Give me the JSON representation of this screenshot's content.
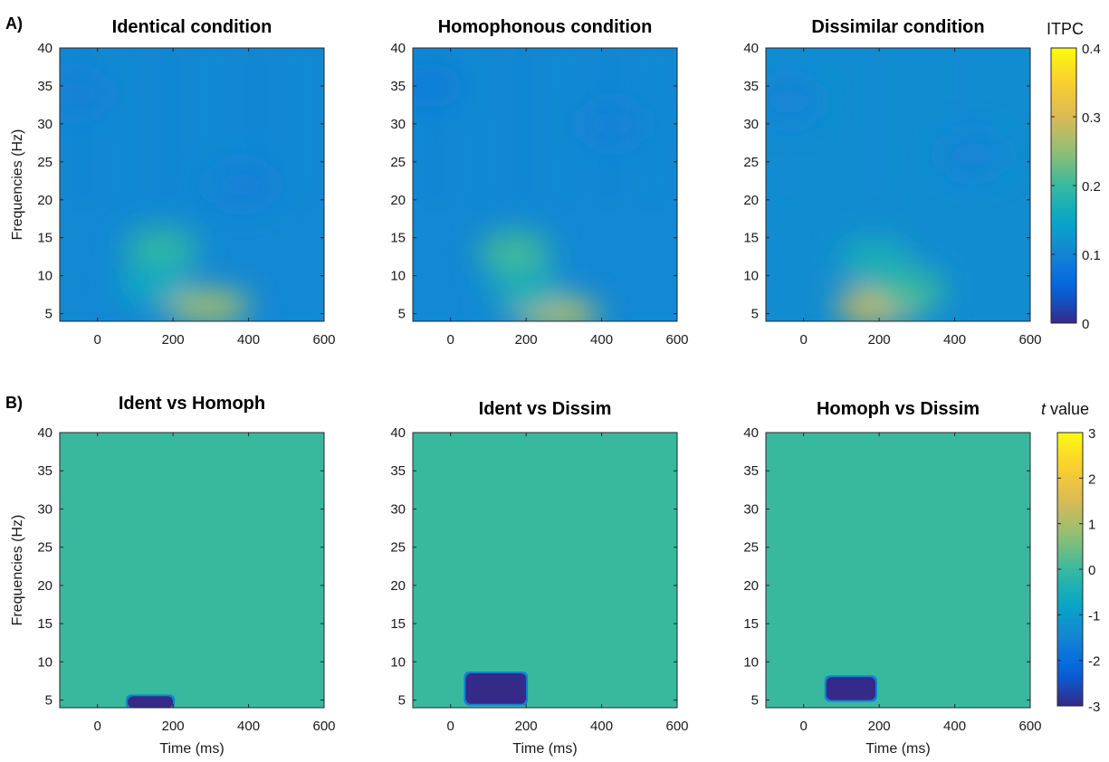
{
  "panel_labels": [
    "A)",
    "B)"
  ],
  "colorbars": {
    "itpc": {
      "label": "ITPC",
      "range": [
        0,
        0.4
      ],
      "ticks": [
        "0",
        "0.1",
        "0.2",
        "0.3",
        "0.4"
      ],
      "colormap": "parula"
    },
    "t": {
      "label_italic": "t",
      "label_rest": " value",
      "range": [
        -3,
        3
      ],
      "ticks": [
        "-3",
        "-2",
        "-1",
        "0",
        "1",
        "2",
        "3"
      ],
      "colormap": "parula"
    }
  },
  "axes": {
    "xlabel": "Time (ms)",
    "ylabel": "Frequencies (Hz)",
    "x_ticks": [
      "0",
      "200",
      "400",
      "600"
    ],
    "y_ticks": [
      "5",
      "10",
      "15",
      "20",
      "25",
      "30",
      "35",
      "40"
    ]
  },
  "chart_data": [
    {
      "type": "heatmap",
      "title": "Identical condition",
      "xlabel": "",
      "ylabel": "Frequencies (Hz)",
      "xlim": [
        -100,
        600
      ],
      "ylim": [
        4,
        40
      ],
      "clim": [
        0,
        0.4
      ],
      "background": 0.105,
      "blobs": [
        {
          "x": 290,
          "y": 6,
          "value": 0.16
        },
        {
          "x": 170,
          "y": 13.5,
          "value": 0.09
        },
        {
          "x": 150,
          "y": 9,
          "value": 0.05
        },
        {
          "x": -60,
          "y": 34,
          "value": -0.01
        },
        {
          "x": 380,
          "y": 22,
          "value": -0.01
        }
      ]
    },
    {
      "type": "heatmap",
      "title": "Homophonous condition",
      "xlabel": "",
      "ylabel": "",
      "xlim": [
        -100,
        600
      ],
      "ylim": [
        4,
        40
      ],
      "clim": [
        0,
        0.4
      ],
      "background": 0.105,
      "blobs": [
        {
          "x": 280,
          "y": 5,
          "value": 0.17
        },
        {
          "x": 170,
          "y": 13,
          "value": 0.1
        },
        {
          "x": 200,
          "y": 8,
          "value": 0.06
        },
        {
          "x": -60,
          "y": 35,
          "value": -0.015
        },
        {
          "x": 430,
          "y": 30,
          "value": -0.008
        }
      ]
    },
    {
      "type": "heatmap",
      "title": "Dissimilar condition",
      "xlabel": "",
      "ylabel": "",
      "xlim": [
        -100,
        600
      ],
      "ylim": [
        4,
        40
      ],
      "clim": [
        0,
        0.4
      ],
      "background": 0.11,
      "blobs": [
        {
          "x": 200,
          "y": 6,
          "value": 0.2
        },
        {
          "x": 280,
          "y": 8,
          "value": 0.09
        },
        {
          "x": 190,
          "y": 12,
          "value": 0.06
        },
        {
          "x": -40,
          "y": 33,
          "value": -0.01
        },
        {
          "x": 450,
          "y": 26,
          "value": -0.01
        }
      ]
    },
    {
      "type": "heatmap",
      "title": "Ident vs Homoph",
      "xlabel": "Time (ms)",
      "ylabel": "Frequencies (Hz)",
      "xlim": [
        -100,
        600
      ],
      "ylim": [
        4,
        40
      ],
      "clim": [
        -3,
        3
      ],
      "background": 0,
      "clusters": [
        {
          "x_range": [
            80,
            200
          ],
          "y_range": [
            4,
            5.5
          ],
          "value": -3
        }
      ]
    },
    {
      "type": "heatmap",
      "title": "Ident vs Dissim",
      "xlabel": "Time (ms)",
      "ylabel": "",
      "xlim": [
        -100,
        600
      ],
      "ylim": [
        4,
        40
      ],
      "clim": [
        -3,
        3
      ],
      "background": 0,
      "clusters": [
        {
          "x_range": [
            40,
            200
          ],
          "y_range": [
            4.5,
            8.5
          ],
          "value": -3
        }
      ]
    },
    {
      "type": "heatmap",
      "title": "Homoph vs Dissim",
      "xlabel": "Time (ms)",
      "ylabel": "",
      "xlim": [
        -100,
        600
      ],
      "ylim": [
        4,
        40
      ],
      "clim": [
        -3,
        3
      ],
      "background": 0,
      "clusters": [
        {
          "x_range": [
            60,
            190
          ],
          "y_range": [
            5,
            8
          ],
          "value": -3
        }
      ]
    }
  ]
}
